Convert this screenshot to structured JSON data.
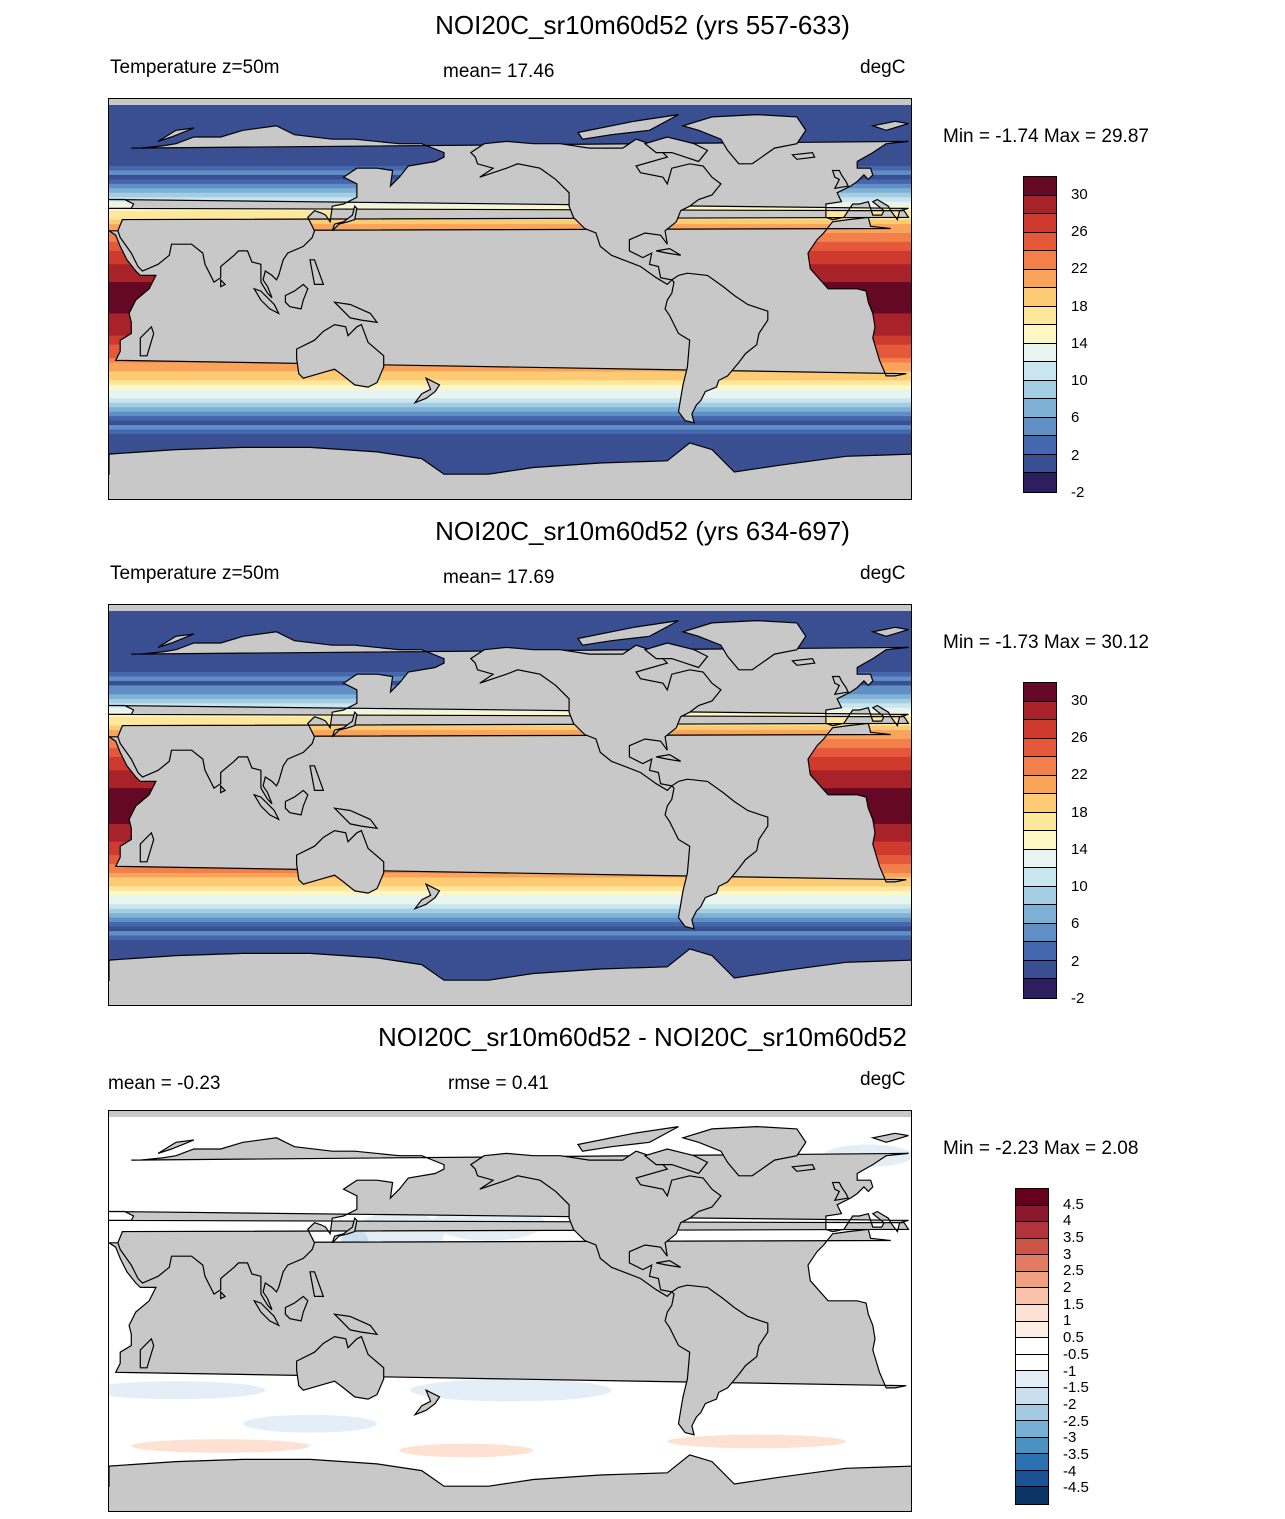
{
  "panels": [
    {
      "title": "NOI20C_sr10m60d52 (yrs 557-633)",
      "left_label": "Temperature z=50m",
      "center_label": "mean=  17.46",
      "units": "degC",
      "minmax": "Min =  -1.74 Max =  29.87",
      "colorbar_labels": [
        "30",
        "26",
        "22",
        "18",
        "14",
        "10",
        "6",
        "2",
        "-2"
      ]
    },
    {
      "title": "NOI20C_sr10m60d52 (yrs 634-697)",
      "left_label": "Temperature z=50m",
      "center_label": "mean=  17.69",
      "units": "degC",
      "minmax": "Min =  -1.73 Max =  30.12",
      "colorbar_labels": [
        "30",
        "26",
        "22",
        "18",
        "14",
        "10",
        "6",
        "2",
        "-2"
      ]
    },
    {
      "title": "NOI20C_sr10m60d52 - NOI20C_sr10m60d52",
      "left_label": "mean =  -0.23",
      "center_label": "rmse =   0.41",
      "units": "degC",
      "minmax": "Min =  -2.23 Max =   2.08",
      "colorbar_labels": [
        "4.5",
        "4",
        "3.5",
        "3",
        "2.5",
        "2",
        "1.5",
        "1",
        "0.5",
        "-0.5",
        "-1",
        "-1.5",
        "-2",
        "-2.5",
        "-3",
        "-3.5",
        "-4",
        "-4.5"
      ]
    }
  ],
  "colors": {
    "land": "#c8c8c8",
    "temp_scale": [
      "#2d1e5e",
      "#3a4e92",
      "#4467ad",
      "#5f8fc4",
      "#7fb0d6",
      "#a3cde3",
      "#c9e6ef",
      "#e8f4ef",
      "#fdf7c4",
      "#fde79a",
      "#fccb74",
      "#faa45b",
      "#f3804a",
      "#e5593b",
      "#cf3a2f",
      "#a8222a",
      "#650826"
    ],
    "diff_scale": [
      "#0c3565",
      "#1a5394",
      "#2c71b1",
      "#4a92c4",
      "#76b0d5",
      "#a4cae2",
      "#c9dfee",
      "#e3eef6",
      "#ffffff",
      "#fde1d2",
      "#f9c3a9",
      "#f1a183",
      "#e17b61",
      "#cc5548",
      "#b2333a",
      "#8e1730",
      "#67001f"
    ]
  }
}
